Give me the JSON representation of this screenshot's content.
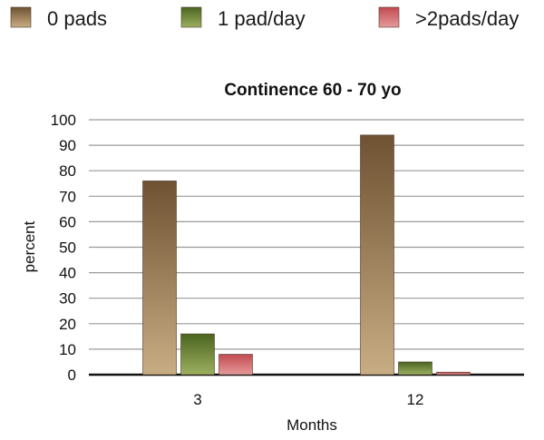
{
  "chart_data": {
    "type": "bar",
    "title": "Continence 60 - 70 yo",
    "xlabel": "Months",
    "ylabel": "percent",
    "categories": [
      "3",
      "12"
    ],
    "series": [
      {
        "name": "0 pads",
        "values": [
          76,
          94
        ],
        "color": "#8a6a45"
      },
      {
        "name": "1 pad/day",
        "values": [
          16,
          5
        ],
        "color": "#5c7a2a"
      },
      {
        "name": ">2pads/day",
        "values": [
          8,
          1
        ],
        "color": "#c9555a"
      }
    ],
    "ylim": [
      0,
      100
    ],
    "yticks": [
      0,
      10,
      20,
      30,
      40,
      50,
      60,
      70,
      80,
      90,
      100
    ],
    "grid": true,
    "legend_position": "top"
  }
}
